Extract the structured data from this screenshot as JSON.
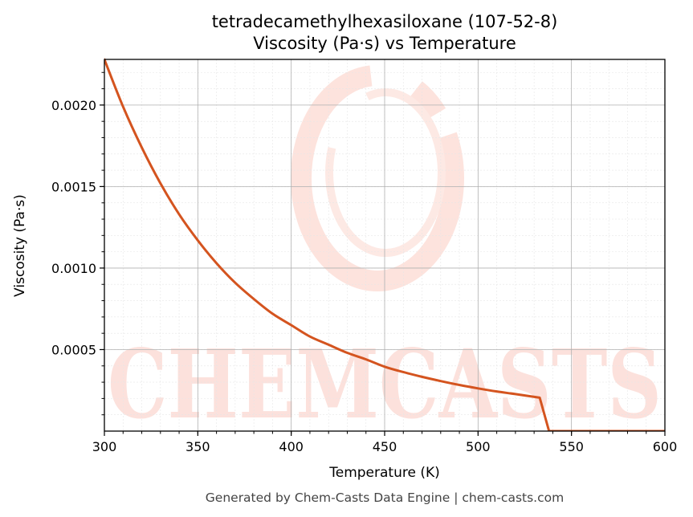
{
  "chart_data": {
    "type": "line",
    "title": "tetradecamethylhexasiloxane (107-52-8)",
    "subtitle": "Viscosity (Pa·s) vs Temperature",
    "xlabel": "Temperature (K)",
    "ylabel": "Viscosity (Pa·s)",
    "xlim": [
      300,
      600
    ],
    "ylim": [
      0,
      0.00228
    ],
    "xticks": [
      300,
      350,
      400,
      450,
      500,
      550,
      600
    ],
    "xtick_labels": [
      "300",
      "350",
      "400",
      "450",
      "500",
      "550",
      "600"
    ],
    "yticks": [
      0.0005,
      0.001,
      0.0015,
      0.002
    ],
    "ytick_labels": [
      "0.0005",
      "0.0010",
      "0.0015",
      "0.0020"
    ],
    "grid": true,
    "series": [
      {
        "color": "#d4541f",
        "x": [
          300,
          310,
          320,
          330,
          340,
          350,
          360,
          370,
          380,
          390,
          400,
          410,
          420,
          430,
          440,
          450,
          460,
          470,
          480,
          490,
          500,
          510,
          520,
          533,
          538,
          600
        ],
        "y": [
          0.00228,
          0.00199,
          0.00174,
          0.00152,
          0.00133,
          0.00117,
          0.00103,
          0.00091,
          0.00081,
          0.00072,
          0.00065,
          0.00058,
          0.00053,
          0.00048,
          0.00044,
          0.000395,
          0.000362,
          0.000333,
          0.000307,
          0.000283,
          0.000262,
          0.000243,
          0.000227,
          0.000205,
          0.0,
          0.0
        ]
      }
    ]
  },
  "watermark": {
    "text": "CHEMCASTS",
    "color": "#fcdcd6"
  },
  "footer": "Generated by Chem-Casts Data Engine | chem-casts.com"
}
